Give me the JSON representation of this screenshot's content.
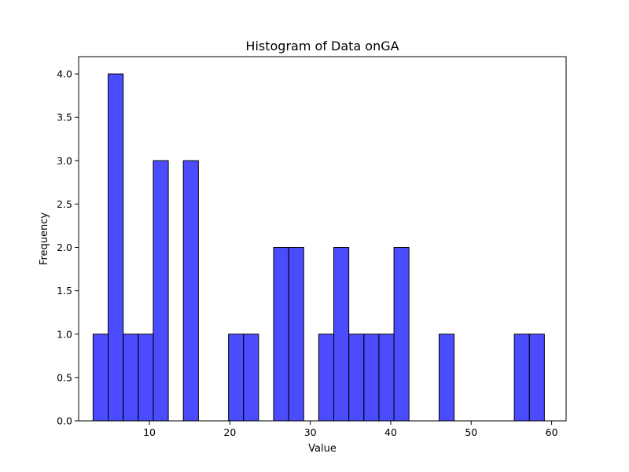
{
  "chart_data": {
    "type": "bar",
    "title": "Histogram of Data onGA",
    "xlabel": "Value",
    "ylabel": "Frequency",
    "xlim": [
      1.2,
      61.8
    ],
    "ylim": [
      0,
      4.2
    ],
    "x_ticks": [
      10,
      20,
      30,
      40,
      50,
      60
    ],
    "y_ticks": [
      0.0,
      0.5,
      1.0,
      1.5,
      2.0,
      2.5,
      3.0,
      3.5,
      4.0
    ],
    "x_tick_labels": [
      "10",
      "20",
      "30",
      "40",
      "50",
      "60"
    ],
    "y_tick_labels": [
      "0.0",
      "0.5",
      "1.0",
      "1.5",
      "2.0",
      "2.5",
      "3.0",
      "3.5",
      "4.0"
    ],
    "bin_start": 3.0,
    "bin_width": 1.87,
    "bin_counts": [
      1,
      4,
      1,
      1,
      3,
      0,
      3,
      0,
      0,
      1,
      1,
      0,
      2,
      2,
      0,
      1,
      2,
      1,
      1,
      1,
      2,
      0,
      0,
      1,
      0,
      0,
      0,
      0,
      1,
      1
    ],
    "bar_color": "#0000ff",
    "bar_alpha": 0.7,
    "bar_edge_color": "#000000",
    "grid": false
  }
}
